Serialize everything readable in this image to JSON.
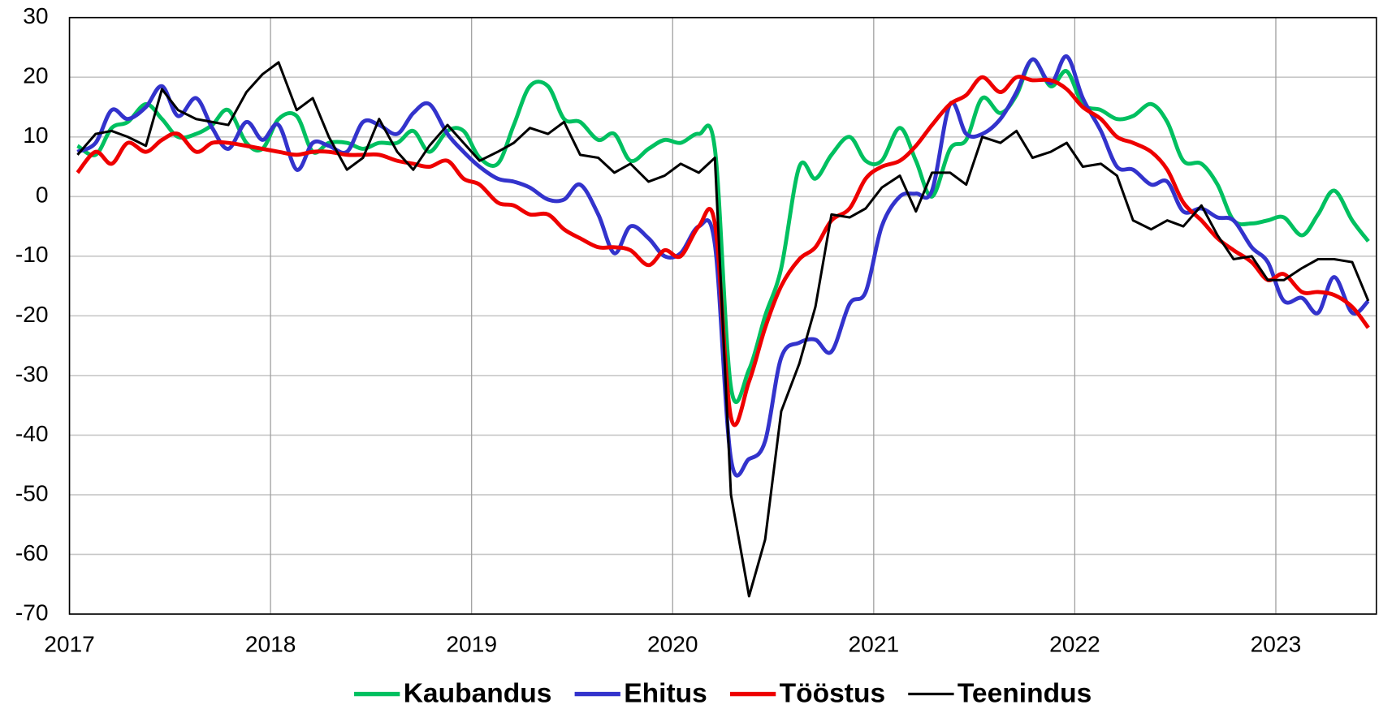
{
  "chart_data": {
    "type": "line",
    "x": [
      2017.04,
      2017.13,
      2017.21,
      2017.29,
      2017.38,
      2017.46,
      2017.54,
      2017.63,
      2017.71,
      2017.79,
      2017.88,
      2017.96,
      2018.04,
      2018.13,
      2018.21,
      2018.29,
      2018.38,
      2018.46,
      2018.54,
      2018.63,
      2018.71,
      2018.79,
      2018.88,
      2018.96,
      2019.04,
      2019.13,
      2019.21,
      2019.29,
      2019.38,
      2019.46,
      2019.54,
      2019.63,
      2019.71,
      2019.79,
      2019.88,
      2019.96,
      2020.04,
      2020.13,
      2020.21,
      2020.29,
      2020.38,
      2020.46,
      2020.54,
      2020.63,
      2020.71,
      2020.79,
      2020.88,
      2020.96,
      2021.04,
      2021.13,
      2021.21,
      2021.29,
      2021.38,
      2021.46,
      2021.54,
      2021.63,
      2021.71,
      2021.79,
      2021.88,
      2021.96,
      2022.04,
      2022.13,
      2022.21,
      2022.29,
      2022.38,
      2022.46,
      2022.54,
      2022.63,
      2022.71,
      2022.79,
      2022.88,
      2022.96,
      2023.04,
      2023.13,
      2023.21,
      2023.29,
      2023.38,
      2023.46
    ],
    "series": [
      {
        "name": "Kaubandus",
        "color": "#00c060",
        "smooth": true,
        "values": [
          8.5,
          7,
          11.5,
          12.5,
          15.5,
          13,
          10,
          10.5,
          12,
          14.5,
          9,
          8,
          13,
          13.5,
          7.5,
          9,
          9,
          8,
          9,
          9,
          11,
          7.5,
          11,
          11,
          6.5,
          5.5,
          12,
          18.5,
          18.5,
          13,
          12.5,
          9.5,
          10.5,
          6,
          8,
          9.5,
          9,
          10.5,
          8,
          -32,
          -29,
          -20,
          -12,
          5,
          3,
          7,
          10,
          6,
          6,
          11.5,
          6,
          0,
          8,
          9.5,
          16.5,
          14,
          17,
          23,
          18.5,
          21,
          15.5,
          14.5,
          13,
          13.5,
          15.5,
          12.5,
          6,
          5.5,
          2,
          -4,
          -4.5,
          -4,
          -3.5,
          -6.5,
          -3,
          1,
          -4,
          -7.5
        ]
      },
      {
        "name": "Ehitus",
        "color": "#3333cc",
        "smooth": true,
        "values": [
          7.5,
          9,
          14.5,
          13,
          15,
          18.5,
          13.5,
          16.5,
          11.5,
          8,
          12.5,
          9.5,
          12,
          4.5,
          9,
          8.5,
          7.5,
          12.5,
          12,
          10.5,
          14,
          15.5,
          10.5,
          7.5,
          5,
          3,
          2.5,
          1.5,
          -0.5,
          -0.5,
          2,
          -3,
          -9.5,
          -5,
          -7,
          -10,
          -9.5,
          -5,
          -8,
          -44,
          -44,
          -41,
          -27,
          -24.5,
          -24,
          -26,
          -18,
          -16,
          -5,
          0,
          0.5,
          1,
          15.5,
          10.5,
          10.5,
          13,
          17.5,
          23,
          19,
          23.5,
          16.5,
          11,
          5,
          4.5,
          2,
          2.5,
          -2.5,
          -2,
          -3.5,
          -4,
          -8.5,
          -11,
          -17.5,
          -17,
          -19.5,
          -13.5,
          -19.5,
          -17.5
        ]
      },
      {
        "name": "Tööstus",
        "color": "#ee0000",
        "smooth": true,
        "values": [
          4,
          7.5,
          5.5,
          9,
          7.5,
          9.5,
          10.5,
          7.5,
          9,
          9,
          8.5,
          8,
          7.5,
          7,
          7.5,
          7.5,
          7,
          7,
          7,
          6,
          5.5,
          5,
          6,
          3,
          2,
          -1,
          -1.5,
          -3,
          -3,
          -5.5,
          -7,
          -8.5,
          -8.5,
          -9,
          -11.5,
          -9,
          -10,
          -5,
          -4.5,
          -37,
          -31,
          -22,
          -15,
          -10.5,
          -8.5,
          -4,
          -2,
          3,
          5,
          6,
          8.5,
          12,
          15.5,
          17,
          20,
          17.5,
          20,
          19.5,
          19.5,
          18,
          15,
          13,
          10,
          9,
          7.5,
          4.5,
          -1,
          -4,
          -7,
          -9,
          -11,
          -14,
          -13,
          -16,
          -16,
          -16.5,
          -18.5,
          -22
        ]
      },
      {
        "name": "Teenindus",
        "color": "#000000",
        "smooth": false,
        "values": [
          7,
          10.5,
          11,
          10,
          8.5,
          18,
          14.5,
          13,
          12.5,
          12,
          17.5,
          20.5,
          22.5,
          14.5,
          16.5,
          10,
          4.5,
          6.5,
          13,
          7.5,
          4.5,
          8.5,
          12,
          9,
          6,
          7.5,
          9,
          11.5,
          10.5,
          12.5,
          7,
          6.5,
          4,
          5.5,
          2.5,
          3.5,
          5.5,
          4,
          6.5,
          -50,
          -67,
          -57.5,
          -36,
          -28,
          -18.5,
          -3,
          -3.5,
          -2,
          1.5,
          3.5,
          -2.5,
          4,
          4,
          2,
          10,
          9,
          11,
          6.5,
          7.5,
          9,
          5,
          5.5,
          3.5,
          -4,
          -5.5,
          -4,
          -5,
          -1.5,
          -6.5,
          -10.5,
          -10,
          -14,
          -14,
          -12,
          -10.5,
          -10.5,
          -11,
          -17.5
        ]
      }
    ],
    "xlim": [
      2017,
      2023.5
    ],
    "xticks": [
      2017,
      2018,
      2019,
      2020,
      2021,
      2022,
      2023
    ],
    "ylim": [
      -70,
      30
    ],
    "yticks": [
      -70,
      -60,
      -50,
      -40,
      -30,
      -20,
      -10,
      0,
      10,
      20,
      30
    ],
    "grid": true,
    "legend": "bottom"
  }
}
